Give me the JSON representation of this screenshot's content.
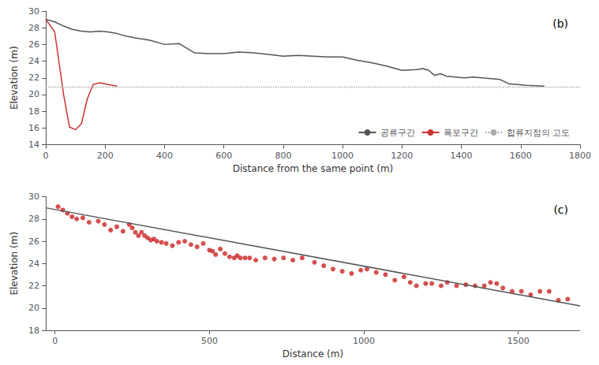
{
  "chart_data": [
    {
      "type": "line",
      "title": "(b)",
      "xlabel": "Distance from the same point (m)",
      "ylabel": "Elevation (m)",
      "xlim": [
        0,
        1800
      ],
      "ylim": [
        14,
        30
      ],
      "xticks": [
        0,
        200,
        400,
        600,
        800,
        1000,
        1200,
        1400,
        1600,
        1800
      ],
      "yticks": [
        14,
        16,
        18,
        20,
        22,
        24,
        26,
        28,
        30
      ],
      "grid": false,
      "legend": "lower right",
      "series": [
        {
          "name": "공류구간",
          "type": "line",
          "color": "#555555",
          "x": [
            0,
            30,
            60,
            90,
            120,
            150,
            180,
            210,
            240,
            270,
            300,
            350,
            400,
            450,
            500,
            550,
            600,
            650,
            700,
            750,
            800,
            850,
            900,
            950,
            1000,
            1050,
            1100,
            1150,
            1200,
            1250,
            1270,
            1290,
            1310,
            1330,
            1350,
            1380,
            1410,
            1440,
            1470,
            1500,
            1530,
            1560,
            1590,
            1620,
            1650,
            1680
          ],
          "values": [
            29.0,
            28.7,
            28.2,
            27.8,
            27.6,
            27.5,
            27.6,
            27.5,
            27.3,
            27.0,
            26.8,
            26.5,
            26.0,
            26.1,
            25.0,
            24.9,
            24.9,
            25.1,
            25.0,
            24.8,
            24.6,
            24.7,
            24.6,
            24.5,
            24.5,
            24.1,
            23.8,
            23.4,
            22.9,
            23.0,
            23.1,
            22.9,
            22.3,
            22.5,
            22.2,
            22.1,
            22.0,
            22.1,
            22.0,
            21.9,
            21.8,
            21.3,
            21.2,
            21.1,
            21.05,
            21.0
          ]
        },
        {
          "name": "폭포구간",
          "type": "line",
          "color": "#cc3333",
          "x": [
            0,
            30,
            60,
            80,
            100,
            120,
            140,
            160,
            180,
            210,
            240
          ],
          "values": [
            29.0,
            27.5,
            20.0,
            16.1,
            15.8,
            16.5,
            19.5,
            21.2,
            21.4,
            21.2,
            21.0
          ]
        },
        {
          "name": "합류지점의 고도",
          "type": "hline",
          "color": "#aaaaaa",
          "line_style": "dotted",
          "values": [
            20.9
          ]
        }
      ]
    },
    {
      "type": "scatter",
      "title": "(c)",
      "xlabel": "Distance (m)",
      "ylabel": "Elevation (m)",
      "xlim": [
        -30,
        1700
      ],
      "ylim": [
        18,
        30
      ],
      "xticks": [
        0,
        500,
        1000,
        1500
      ],
      "yticks": [
        18,
        20,
        22,
        24,
        26,
        28,
        30
      ],
      "grid": false,
      "series": [
        {
          "type": "line",
          "color": "#555555",
          "x": [
            -30,
            1700
          ],
          "values": [
            29.0,
            20.2
          ]
        },
        {
          "type": "scatter",
          "color": "#cc2222",
          "x": [
            10,
            25,
            40,
            55,
            70,
            90,
            110,
            140,
            160,
            180,
            200,
            220,
            240,
            250,
            260,
            270,
            280,
            290,
            300,
            310,
            320,
            330,
            345,
            360,
            380,
            400,
            420,
            440,
            460,
            480,
            500,
            510,
            520,
            535,
            550,
            565,
            580,
            590,
            600,
            615,
            630,
            650,
            680,
            710,
            740,
            770,
            800,
            840,
            870,
            900,
            930,
            960,
            990,
            1010,
            1040,
            1070,
            1100,
            1130,
            1150,
            1170,
            1200,
            1220,
            1250,
            1270,
            1300,
            1330,
            1360,
            1390,
            1410,
            1430,
            1450,
            1480,
            1510,
            1540,
            1570,
            1600,
            1630,
            1660
          ],
          "values": [
            29.1,
            28.8,
            28.5,
            28.2,
            28.0,
            28.1,
            27.7,
            27.8,
            27.5,
            27.0,
            27.3,
            26.9,
            27.5,
            27.2,
            26.8,
            26.5,
            26.8,
            26.5,
            26.3,
            26.1,
            26.2,
            26.0,
            25.9,
            25.8,
            25.6,
            25.9,
            26.0,
            25.7,
            25.5,
            25.8,
            25.2,
            25.1,
            24.8,
            25.3,
            24.9,
            24.6,
            24.5,
            24.7,
            24.5,
            24.5,
            24.5,
            24.3,
            24.5,
            24.4,
            24.5,
            24.3,
            24.5,
            24.1,
            23.8,
            23.5,
            23.3,
            23.1,
            23.4,
            23.5,
            23.2,
            23.0,
            22.5,
            22.8,
            22.3,
            22.0,
            22.2,
            22.2,
            22.0,
            22.3,
            22.0,
            22.1,
            22.0,
            22.0,
            22.3,
            22.2,
            21.8,
            21.5,
            21.5,
            21.2,
            21.5,
            21.5,
            20.7,
            20.8
          ]
        }
      ]
    }
  ]
}
